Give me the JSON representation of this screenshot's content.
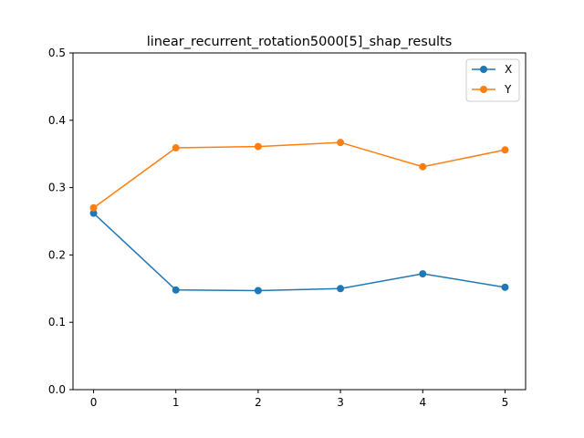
{
  "chart_data": {
    "type": "line",
    "title": "linear_recurrent_rotation5000[5]_shap_results",
    "xlabel": "",
    "ylabel": "",
    "x": [
      0,
      1,
      2,
      3,
      4,
      5
    ],
    "xlim": [
      -0.25,
      5.25
    ],
    "ylim": [
      0,
      0.5
    ],
    "xticks": [
      0,
      1,
      2,
      3,
      4,
      5
    ],
    "yticks": [
      0.0,
      0.1,
      0.2,
      0.3,
      0.4,
      0.5
    ],
    "xtick_labels": [
      "0",
      "1",
      "2",
      "3",
      "4",
      "5"
    ],
    "ytick_labels": [
      "0.0",
      "0.1",
      "0.2",
      "0.3",
      "0.4",
      "0.5"
    ],
    "grid": false,
    "legend_position": "top-right",
    "series": [
      {
        "name": "X",
        "color": "#1f77b4",
        "values": [
          0.262,
          0.148,
          0.147,
          0.15,
          0.172,
          0.152
        ]
      },
      {
        "name": "Y",
        "color": "#ff7f0e",
        "values": [
          0.27,
          0.359,
          0.361,
          0.367,
          0.331,
          0.356
        ]
      }
    ]
  }
}
